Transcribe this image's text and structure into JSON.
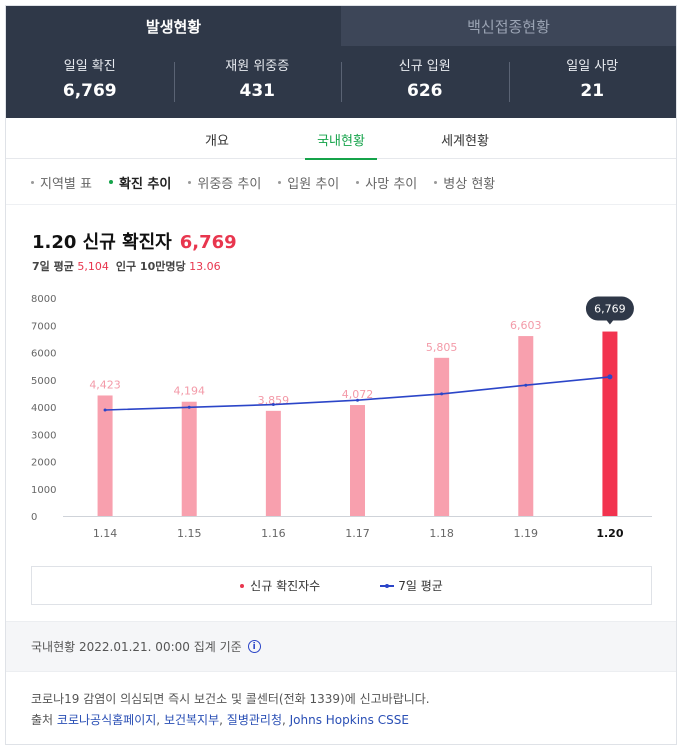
{
  "main_tabs": [
    {
      "label": "발생현황",
      "active": true
    },
    {
      "label": "백신접종현황",
      "active": false
    }
  ],
  "stats": [
    {
      "label": "일일 확진",
      "value": "6,769"
    },
    {
      "label": "재원 위중증",
      "value": "431"
    },
    {
      "label": "신규 입원",
      "value": "626"
    },
    {
      "label": "일일 사망",
      "value": "21"
    }
  ],
  "sub_tabs": [
    {
      "label": "개요",
      "active": false
    },
    {
      "label": "국내현황",
      "active": true
    },
    {
      "label": "세계현황",
      "active": false
    }
  ],
  "filters": [
    {
      "label": "지역별 표",
      "active": false
    },
    {
      "label": "확진 추이",
      "active": true
    },
    {
      "label": "위중증 추이",
      "active": false
    },
    {
      "label": "입원 추이",
      "active": false
    },
    {
      "label": "사망 추이",
      "active": false
    },
    {
      "label": "병상 현황",
      "active": false
    }
  ],
  "chart_header": {
    "title": "1.20 신규 확진자",
    "value": "6,769",
    "avg_label": "7일 평균",
    "avg_value": "5,104",
    "per_label": "인구 10만명당",
    "per_value": "13.06"
  },
  "chart_data": {
    "type": "bar",
    "categories": [
      "1.14",
      "1.15",
      "1.16",
      "1.17",
      "1.18",
      "1.19",
      "1.20"
    ],
    "series": [
      {
        "name": "신규 확진자수",
        "type": "bar",
        "values": [
          4423,
          4194,
          3859,
          4072,
          5805,
          6603,
          6769
        ]
      },
      {
        "name": "7일 평균",
        "type": "line",
        "values": [
          3890,
          3990,
          4090,
          4250,
          4480,
          4800,
          5104
        ]
      }
    ],
    "data_labels": [
      "4,423",
      "4,194",
      "3,859",
      "4,072",
      "5,805",
      "6,603",
      "6,769"
    ],
    "y_ticks": [
      "0",
      "1000",
      "2000",
      "3000",
      "4000",
      "5000",
      "6000",
      "7000",
      "8000"
    ],
    "ylim": [
      0,
      8000
    ],
    "grid": false,
    "highlight_index": 6,
    "colors": {
      "bar": "#f8a0ae",
      "bar_highlight": "#f2334f",
      "label": "#f39aa8",
      "line": "#2b45c8",
      "tooltip_bg": "#2f3848"
    },
    "legend_position": "bottom"
  },
  "legend": {
    "bar": "신규 확진자수",
    "line": "7일 평균"
  },
  "basis": {
    "text": "국내현황 2022.01.21. 00:00 집계 기준",
    "icon": "info-icon"
  },
  "notice": {
    "line1": "코로나19 감염이 의심되면 즉시 보건소 및 콜센터(전화 1339)에 신고바랍니다.",
    "source_label": "출처",
    "sources": [
      "코로나공식홈페이지",
      "보건복지부",
      "질병관리청",
      "Johns Hopkins CSSE"
    ]
  }
}
